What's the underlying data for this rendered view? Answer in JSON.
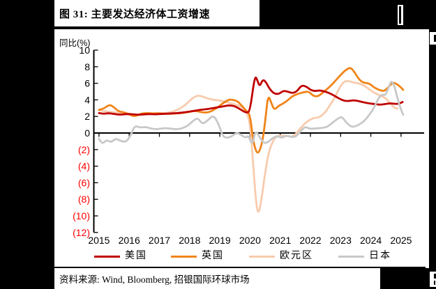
{
  "page": {
    "title": "图 31: 主要发达经济体工资增速",
    "source": "资料来源: Wind, Bloomberg, 招银国际环球市场"
  },
  "chart_data": {
    "type": "line",
    "title": "图 31: 主要发达经济体工资增速",
    "ylabel": "同比(%)",
    "xlabel": "",
    "ylim": [
      -12,
      10
    ],
    "ytick_step": 2,
    "ytick_negative_style": "red-parentheses",
    "x_ticks": [
      2015,
      2016,
      2017,
      2018,
      2019,
      2020,
      2021,
      2022,
      2023,
      2024,
      2025
    ],
    "xlim": [
      2014.85,
      2025.85
    ],
    "grid": false,
    "legend_position": "bottom",
    "axis_color": "#000000",
    "negative_label_color": "#fe0000",
    "series": [
      {
        "name": "美国",
        "key": "us",
        "color": "#c00000",
        "z": 2,
        "points": [
          [
            2015.0,
            2.4
          ],
          [
            2015.15,
            2.3
          ],
          [
            2015.3,
            2.4
          ],
          [
            2015.5,
            2.3
          ],
          [
            2015.7,
            2.2
          ],
          [
            2015.9,
            2.3
          ],
          [
            2016.1,
            2.25
          ],
          [
            2016.35,
            2.2
          ],
          [
            2016.6,
            2.3
          ],
          [
            2016.85,
            2.25
          ],
          [
            2017.1,
            2.3
          ],
          [
            2017.35,
            2.35
          ],
          [
            2017.6,
            2.4
          ],
          [
            2017.85,
            2.5
          ],
          [
            2018.1,
            2.65
          ],
          [
            2018.35,
            2.8
          ],
          [
            2018.6,
            2.9
          ],
          [
            2018.85,
            3.05
          ],
          [
            2019.1,
            3.2
          ],
          [
            2019.3,
            3.35
          ],
          [
            2019.5,
            3.25
          ],
          [
            2019.7,
            2.8
          ],
          [
            2019.9,
            2.4
          ],
          [
            2020.0,
            2.7
          ],
          [
            2020.16,
            7.0
          ],
          [
            2020.25,
            6.3
          ],
          [
            2020.32,
            5.6
          ],
          [
            2020.42,
            6.45
          ],
          [
            2020.52,
            6.2
          ],
          [
            2020.65,
            5.3
          ],
          [
            2020.8,
            4.75
          ],
          [
            2020.95,
            4.7
          ],
          [
            2021.1,
            5.1
          ],
          [
            2021.25,
            5.0
          ],
          [
            2021.4,
            4.8
          ],
          [
            2021.55,
            5.0
          ],
          [
            2021.7,
            5.75
          ],
          [
            2021.85,
            5.65
          ],
          [
            2022.0,
            5.2
          ],
          [
            2022.15,
            5.05
          ],
          [
            2022.3,
            5.15
          ],
          [
            2022.5,
            5.0
          ],
          [
            2022.7,
            4.7
          ],
          [
            2022.9,
            4.25
          ],
          [
            2023.1,
            3.9
          ],
          [
            2023.25,
            3.85
          ],
          [
            2023.4,
            3.95
          ],
          [
            2023.55,
            3.9
          ],
          [
            2023.7,
            3.75
          ],
          [
            2023.9,
            3.6
          ],
          [
            2024.1,
            3.5
          ],
          [
            2024.3,
            3.4
          ],
          [
            2024.5,
            3.5
          ],
          [
            2024.65,
            3.6
          ],
          [
            2024.8,
            3.5
          ],
          [
            2024.95,
            3.55
          ],
          [
            2025.05,
            3.75
          ]
        ]
      },
      {
        "name": "英国",
        "key": "uk",
        "color": "#f08418",
        "z": 1,
        "points": [
          [
            2015.0,
            2.8
          ],
          [
            2015.15,
            2.9
          ],
          [
            2015.35,
            3.45
          ],
          [
            2015.5,
            3.1
          ],
          [
            2015.65,
            2.6
          ],
          [
            2015.85,
            2.5
          ],
          [
            2016.05,
            2.15
          ],
          [
            2016.2,
            2.0
          ],
          [
            2016.4,
            2.35
          ],
          [
            2016.6,
            2.4
          ],
          [
            2016.8,
            2.35
          ],
          [
            2017.0,
            2.4
          ],
          [
            2017.25,
            2.3
          ],
          [
            2017.5,
            2.35
          ],
          [
            2017.75,
            2.4
          ],
          [
            2018.0,
            2.55
          ],
          [
            2018.2,
            2.7
          ],
          [
            2018.45,
            2.45
          ],
          [
            2018.65,
            2.5
          ],
          [
            2018.9,
            3.0
          ],
          [
            2019.1,
            3.6
          ],
          [
            2019.3,
            4.05
          ],
          [
            2019.45,
            4.0
          ],
          [
            2019.6,
            3.8
          ],
          [
            2019.75,
            3.2
          ],
          [
            2019.9,
            2.6
          ],
          [
            2020.0,
            2.2
          ],
          [
            2020.1,
            -0.8
          ],
          [
            2020.2,
            -2.3
          ],
          [
            2020.3,
            -2.4
          ],
          [
            2020.42,
            -0.9
          ],
          [
            2020.52,
            2.0
          ],
          [
            2020.6,
            4.6
          ],
          [
            2020.7,
            3.7
          ],
          [
            2020.8,
            2.75
          ],
          [
            2020.95,
            3.3
          ],
          [
            2021.1,
            3.55
          ],
          [
            2021.25,
            3.95
          ],
          [
            2021.4,
            4.45
          ],
          [
            2021.6,
            4.75
          ],
          [
            2021.8,
            4.95
          ],
          [
            2021.95,
            5.0
          ],
          [
            2022.1,
            4.45
          ],
          [
            2022.25,
            4.4
          ],
          [
            2022.45,
            5.0
          ],
          [
            2022.65,
            5.6
          ],
          [
            2022.85,
            6.4
          ],
          [
            2023.05,
            7.2
          ],
          [
            2023.2,
            7.7
          ],
          [
            2023.33,
            7.9
          ],
          [
            2023.45,
            7.4
          ],
          [
            2023.6,
            6.5
          ],
          [
            2023.75,
            6.05
          ],
          [
            2023.95,
            6.0
          ],
          [
            2024.1,
            5.5
          ],
          [
            2024.3,
            5.15
          ],
          [
            2024.45,
            5.05
          ],
          [
            2024.6,
            5.6
          ],
          [
            2024.72,
            6.1
          ],
          [
            2024.85,
            5.95
          ],
          [
            2025.0,
            5.5
          ],
          [
            2025.07,
            5.2
          ]
        ]
      },
      {
        "name": "欧元区",
        "key": "eurozone",
        "color": "#f8cbad",
        "z": 0,
        "points": [
          [
            2015.0,
            2.75
          ],
          [
            2015.25,
            2.6
          ],
          [
            2015.5,
            2.5
          ],
          [
            2015.8,
            2.4
          ],
          [
            2016.1,
            2.3
          ],
          [
            2016.35,
            2.1
          ],
          [
            2016.6,
            2.3
          ],
          [
            2016.9,
            2.3
          ],
          [
            2017.2,
            2.4
          ],
          [
            2017.5,
            2.6
          ],
          [
            2017.8,
            3.2
          ],
          [
            2018.0,
            3.9
          ],
          [
            2018.15,
            4.35
          ],
          [
            2018.3,
            4.55
          ],
          [
            2018.5,
            4.3
          ],
          [
            2018.7,
            4.05
          ],
          [
            2018.95,
            3.95
          ],
          [
            2019.15,
            3.8
          ],
          [
            2019.35,
            3.6
          ],
          [
            2019.55,
            3.4
          ],
          [
            2019.75,
            3.1
          ],
          [
            2019.9,
            2.4
          ],
          [
            2020.0,
            1.2
          ],
          [
            2020.1,
            -3.5
          ],
          [
            2020.2,
            -8.5
          ],
          [
            2020.28,
            -9.9
          ],
          [
            2020.38,
            -8.0
          ],
          [
            2020.5,
            -4.8
          ],
          [
            2020.62,
            -2.3
          ],
          [
            2020.75,
            -1.0
          ],
          [
            2020.9,
            -0.3
          ],
          [
            2021.05,
            -0.35
          ],
          [
            2021.2,
            -0.3
          ],
          [
            2021.35,
            -0.5
          ],
          [
            2021.5,
            -0.2
          ],
          [
            2021.65,
            0.5
          ],
          [
            2021.8,
            1.1
          ],
          [
            2021.95,
            1.55
          ],
          [
            2022.1,
            1.8
          ],
          [
            2022.3,
            1.9
          ],
          [
            2022.5,
            2.5
          ],
          [
            2022.65,
            3.4
          ],
          [
            2022.8,
            4.2
          ],
          [
            2022.95,
            5.4
          ],
          [
            2023.1,
            6.2
          ],
          [
            2023.25,
            6.3
          ],
          [
            2023.4,
            6.1
          ],
          [
            2023.6,
            6.0
          ],
          [
            2023.8,
            5.7
          ],
          [
            2024.0,
            5.1
          ],
          [
            2024.2,
            4.7
          ],
          [
            2024.35,
            4.45
          ],
          [
            2024.5,
            4.2
          ],
          [
            2024.65,
            3.5
          ],
          [
            2024.8,
            3.0
          ],
          [
            2024.88,
            2.95
          ]
        ]
      },
      {
        "name": "日本",
        "key": "japan",
        "color": "#c8c8c8",
        "z": 3,
        "points": [
          [
            2015.0,
            -0.7
          ],
          [
            2015.1,
            -1.4
          ],
          [
            2015.25,
            -0.8
          ],
          [
            2015.4,
            -1.15
          ],
          [
            2015.55,
            -0.65
          ],
          [
            2015.7,
            -0.95
          ],
          [
            2015.9,
            -1.1
          ],
          [
            2016.05,
            -0.3
          ],
          [
            2016.18,
            0.9
          ],
          [
            2016.35,
            0.65
          ],
          [
            2016.55,
            0.75
          ],
          [
            2016.75,
            0.5
          ],
          [
            2016.95,
            0.45
          ],
          [
            2017.15,
            0.6
          ],
          [
            2017.35,
            0.55
          ],
          [
            2017.55,
            0.45
          ],
          [
            2017.75,
            0.55
          ],
          [
            2017.95,
            0.9
          ],
          [
            2018.15,
            1.6
          ],
          [
            2018.28,
            1.8
          ],
          [
            2018.42,
            1.05
          ],
          [
            2018.6,
            1.5
          ],
          [
            2018.78,
            2.2
          ],
          [
            2018.95,
            1.2
          ],
          [
            2019.1,
            -0.45
          ],
          [
            2019.25,
            -0.6
          ],
          [
            2019.4,
            -0.4
          ],
          [
            2019.55,
            0.05
          ],
          [
            2019.7,
            -0.2
          ],
          [
            2019.85,
            -0.6
          ],
          [
            2019.95,
            -0.3
          ],
          [
            2020.08,
            -1.55
          ],
          [
            2020.18,
            0.35
          ],
          [
            2020.3,
            -0.4
          ],
          [
            2020.45,
            -1.25
          ],
          [
            2020.6,
            -1.1
          ],
          [
            2020.75,
            -0.6
          ],
          [
            2020.9,
            -0.35
          ],
          [
            2021.05,
            -0.6
          ],
          [
            2021.2,
            -0.3
          ],
          [
            2021.35,
            -0.45
          ],
          [
            2021.5,
            -0.5
          ],
          [
            2021.65,
            0.1
          ],
          [
            2021.82,
            0.8
          ],
          [
            2021.97,
            0.5
          ],
          [
            2022.15,
            0.55
          ],
          [
            2022.35,
            0.6
          ],
          [
            2022.55,
            0.7
          ],
          [
            2022.75,
            1.3
          ],
          [
            2022.95,
            1.85
          ],
          [
            2023.05,
            1.95
          ],
          [
            2023.2,
            1.2
          ],
          [
            2023.35,
            0.75
          ],
          [
            2023.5,
            0.8
          ],
          [
            2023.65,
            1.1
          ],
          [
            2023.8,
            1.5
          ],
          [
            2023.95,
            2.2
          ],
          [
            2024.1,
            3.0
          ],
          [
            2024.25,
            4.2
          ],
          [
            2024.38,
            4.7
          ],
          [
            2024.48,
            4.5
          ],
          [
            2024.6,
            5.6
          ],
          [
            2024.68,
            6.35
          ],
          [
            2024.78,
            5.7
          ],
          [
            2024.88,
            4.2
          ],
          [
            2024.98,
            3.0
          ],
          [
            2025.07,
            2.2
          ]
        ]
      }
    ]
  }
}
